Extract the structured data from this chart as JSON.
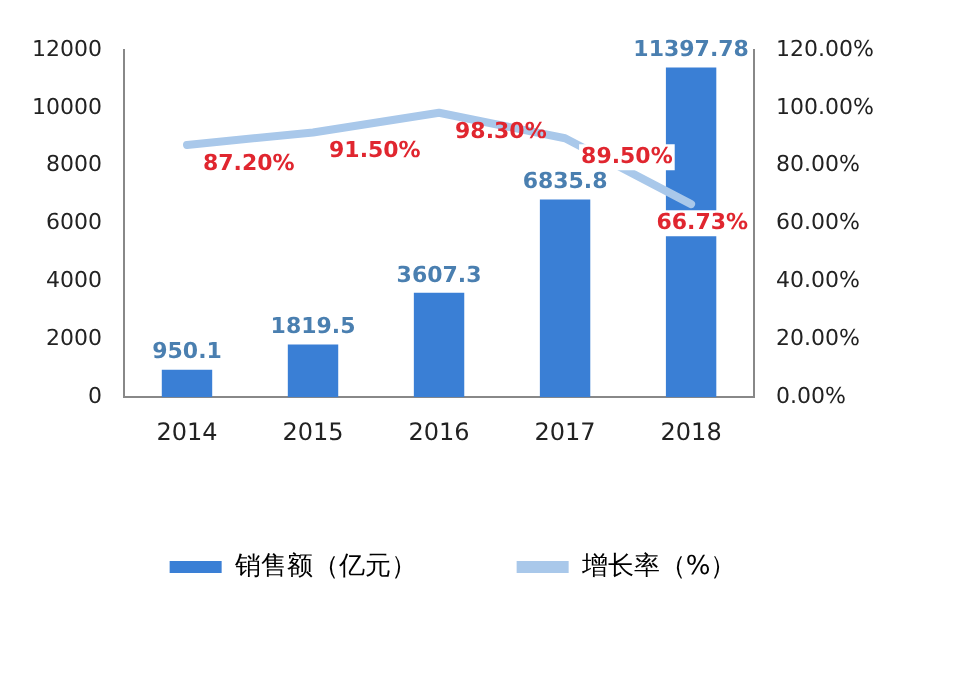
{
  "chart_data": {
    "type": "bar",
    "categories": [
      "2014",
      "2015",
      "2016",
      "2017",
      "2018"
    ],
    "series": [
      {
        "name": "销售额（亿元）",
        "color": "#3a7fd5",
        "values": [
          950.1,
          1819.5,
          3607.3,
          6835.8,
          11397.78
        ],
        "value_labels": [
          "950.1",
          "1819.5",
          "3607.3",
          "6835.8",
          "11397.78"
        ]
      },
      {
        "name": "增长率（%）",
        "type": "line",
        "axis": "y2",
        "color": "#a9c8ea",
        "values": [
          87.2,
          91.5,
          98.3,
          89.5,
          66.73
        ],
        "value_labels": [
          "87.20%",
          "91.50%",
          "98.30%",
          "89.50%",
          "66.73%"
        ]
      }
    ],
    "ylim": [
      0,
      12000
    ],
    "yticks": [
      0,
      2000,
      4000,
      6000,
      8000,
      10000,
      12000
    ],
    "y2lim": [
      0,
      120
    ],
    "y2ticks": [
      {
        "value": 0,
        "label": "0.00%"
      },
      {
        "value": 20,
        "label": "20.00%"
      },
      {
        "value": 40,
        "label": "40.00%"
      },
      {
        "value": 60,
        "label": "60.00%"
      },
      {
        "value": 80,
        "label": "80.00%"
      },
      {
        "value": 100,
        "label": "100.00%"
      },
      {
        "value": 120,
        "label": "120.00%"
      }
    ],
    "grid": false,
    "legend": "bottom",
    "marker": "none"
  }
}
